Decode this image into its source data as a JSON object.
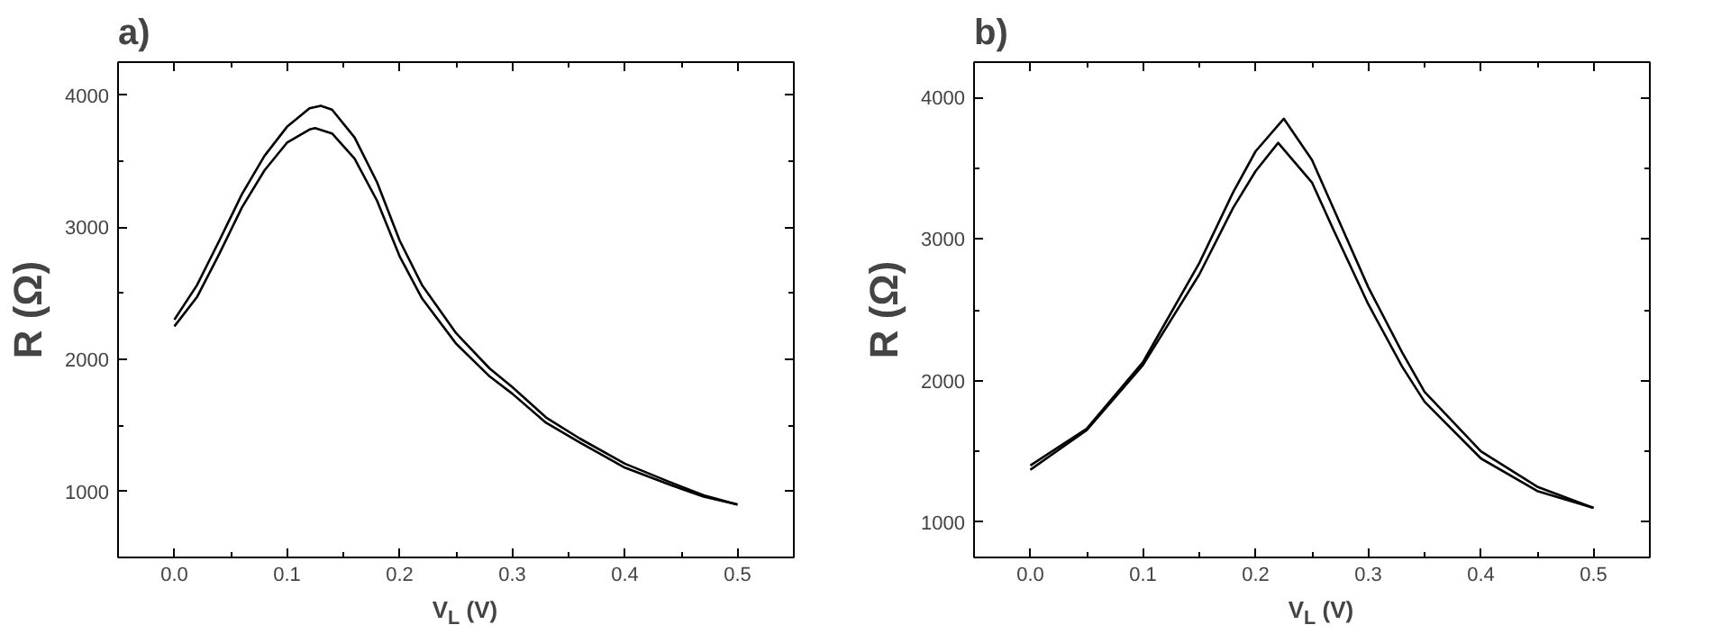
{
  "chart_data": [
    {
      "type": "line",
      "title": "a)",
      "xlabel": "V$_{L}$ (V)",
      "ylabel": "R (Ω)",
      "grid": false,
      "marker": "none",
      "line_style": "solid",
      "xlim": [
        -0.05,
        0.55
      ],
      "ylim": [
        500,
        4250
      ],
      "xticks": [
        {
          "value": 0,
          "label": "0.0"
        },
        {
          "value": 0.05,
          "label": null
        },
        0.1,
        {
          "value": 0.15,
          "label": null
        },
        0.2,
        {
          "value": 0.25,
          "label": null
        },
        0.3,
        {
          "value": 0.35,
          "label": null
        },
        0.4,
        {
          "value": 0.45,
          "label": null
        },
        0.5
      ],
      "yticks": [
        1000,
        {
          "value": 1500,
          "label": null
        },
        2000,
        {
          "value": 2500,
          "label": null
        },
        3000,
        {
          "value": 3500,
          "label": null
        },
        4000
      ],
      "series": [
        {
          "color": "#000000",
          "x": [
            0,
            0.02,
            0.04,
            0.06,
            0.08,
            0.1,
            0.12,
            0.13,
            0.14,
            0.16,
            0.18,
            0.2,
            0.22,
            0.25,
            0.28,
            0.3,
            0.33,
            0.36,
            0.4,
            0.44,
            0.47,
            0.5
          ],
          "values": [
            2300,
            2560,
            2900,
            3250,
            3540,
            3760,
            3900,
            3920,
            3890,
            3680,
            3340,
            2900,
            2560,
            2200,
            1930,
            1790,
            1560,
            1400,
            1210,
            1070,
            970,
            900
          ]
        },
        {
          "color": "#000000",
          "x": [
            0,
            0.02,
            0.04,
            0.06,
            0.08,
            0.1,
            0.12,
            0.125,
            0.14,
            0.16,
            0.18,
            0.2,
            0.22,
            0.25,
            0.28,
            0.3,
            0.33,
            0.36,
            0.4,
            0.44,
            0.47,
            0.5
          ],
          "values": [
            2250,
            2470,
            2800,
            3150,
            3430,
            3640,
            3740,
            3750,
            3710,
            3520,
            3200,
            2780,
            2460,
            2120,
            1870,
            1740,
            1520,
            1370,
            1180,
            1050,
            960,
            900
          ]
        }
      ]
    },
    {
      "type": "line",
      "title": "b)",
      "xlabel": "V$_{L}$ (V)",
      "ylabel": "R (Ω)",
      "grid": false,
      "marker": "none",
      "line_style": "solid",
      "xlim": [
        -0.05,
        0.55
      ],
      "ylim": [
        750,
        4250
      ],
      "xticks": [
        {
          "value": 0,
          "label": "0.0"
        },
        {
          "value": 0.05,
          "label": null
        },
        0.1,
        {
          "value": 0.15,
          "label": null
        },
        0.2,
        {
          "value": 0.25,
          "label": null
        },
        0.3,
        {
          "value": 0.35,
          "label": null
        },
        0.4,
        {
          "value": 0.45,
          "label": null
        },
        0.5
      ],
      "yticks": [
        1000,
        {
          "value": 1500,
          "label": null
        },
        2000,
        {
          "value": 2500,
          "label": null
        },
        3000,
        {
          "value": 3500,
          "label": null
        },
        4000
      ],
      "series": [
        {
          "color": "#000000",
          "x": [
            0,
            0.05,
            0.1,
            0.15,
            0.18,
            0.2,
            0.225,
            0.25,
            0.27,
            0.3,
            0.33,
            0.35,
            0.4,
            0.45,
            0.5
          ],
          "values": [
            1400,
            1660,
            2130,
            2830,
            3330,
            3620,
            3850,
            3560,
            3200,
            2660,
            2200,
            1920,
            1500,
            1250,
            1100
          ]
        },
        {
          "color": "#000000",
          "x": [
            0,
            0.05,
            0.1,
            0.15,
            0.18,
            0.2,
            0.22,
            0.25,
            0.27,
            0.3,
            0.33,
            0.35,
            0.4,
            0.45,
            0.5
          ],
          "values": [
            1370,
            1650,
            2110,
            2750,
            3220,
            3480,
            3680,
            3400,
            3050,
            2540,
            2100,
            1850,
            1450,
            1220,
            1100
          ]
        }
      ]
    }
  ]
}
